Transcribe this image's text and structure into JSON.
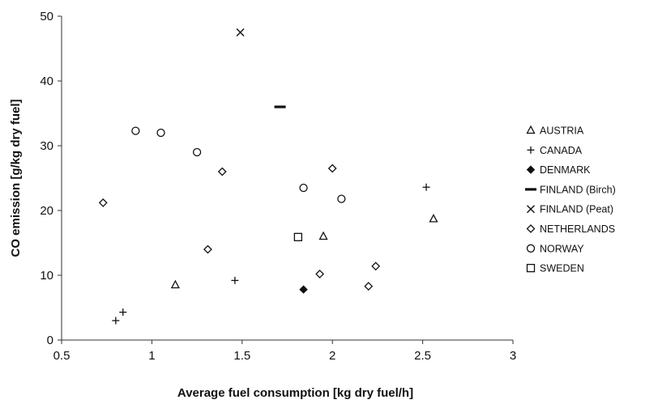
{
  "chart_data": {
    "type": "scatter",
    "title": "",
    "xlabel": "Average fuel consumption [kg dry fuel/h]",
    "ylabel": "CO emission [g/kg dry fuel]",
    "xlim": [
      0.5,
      3
    ],
    "ylim": [
      0,
      50
    ],
    "x_ticks": [
      "0.5",
      "1",
      "1.5",
      "2",
      "2.5",
      "3"
    ],
    "y_ticks": [
      "0",
      "10",
      "20",
      "30",
      "40",
      "50"
    ],
    "grid": false,
    "legend_position": "right",
    "series": [
      {
        "name": "AUSTRIA",
        "marker": "triangle",
        "points": [
          [
            1.13,
            8.5
          ],
          [
            1.95,
            16.0
          ],
          [
            2.56,
            18.7
          ]
        ]
      },
      {
        "name": "CANADA",
        "marker": "plus",
        "points": [
          [
            0.8,
            3.0
          ],
          [
            0.84,
            4.3
          ],
          [
            1.46,
            9.2
          ],
          [
            2.52,
            23.6
          ]
        ]
      },
      {
        "name": "DENMARK",
        "marker": "filled-diamond",
        "points": [
          [
            1.84,
            7.8
          ]
        ]
      },
      {
        "name": "FINLAND (Birch)",
        "marker": "dash",
        "points": [
          [
            1.71,
            36.0
          ]
        ]
      },
      {
        "name": "FINLAND (Peat)",
        "marker": "x",
        "points": [
          [
            1.49,
            47.5
          ]
        ]
      },
      {
        "name": "NETHERLANDS",
        "marker": "diamond",
        "points": [
          [
            0.73,
            21.2
          ],
          [
            1.31,
            14.0
          ],
          [
            1.39,
            26.0
          ],
          [
            1.93,
            10.2
          ],
          [
            2.0,
            26.5
          ],
          [
            2.2,
            8.3
          ],
          [
            2.24,
            11.4
          ]
        ]
      },
      {
        "name": "NORWAY",
        "marker": "circle",
        "points": [
          [
            0.91,
            32.3
          ],
          [
            1.05,
            32.0
          ],
          [
            1.25,
            29.0
          ],
          [
            1.84,
            23.5
          ],
          [
            2.05,
            21.8
          ]
        ]
      },
      {
        "name": "SWEDEN",
        "marker": "square",
        "points": [
          [
            1.81,
            15.9
          ]
        ]
      }
    ]
  }
}
